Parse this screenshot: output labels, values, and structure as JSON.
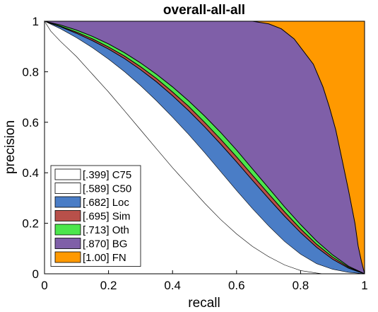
{
  "chart_data": {
    "type": "area",
    "title": "overall-all-all",
    "xlabel": "recall",
    "ylabel": "precision",
    "xlim": [
      0,
      1
    ],
    "ylim": [
      0,
      1
    ],
    "x_ticks": [
      "0",
      "0.2",
      "0.4",
      "0.6",
      "0.8",
      "1"
    ],
    "y_ticks": [
      "0",
      "0.2",
      "0.4",
      "0.6",
      "0.8",
      "1"
    ],
    "grid": false,
    "legend_position": "bottom-left",
    "series": [
      {
        "name": "[1.00] FN",
        "color": "#FF9900",
        "points": [
          [
            0,
            1
          ],
          [
            1,
            1
          ],
          [
            1,
            0
          ]
        ]
      },
      {
        "name": "[.870] BG",
        "color": "#7F5FA8",
        "points": [
          [
            0,
            1
          ],
          [
            0.1,
            1
          ],
          [
            0.2,
            1
          ],
          [
            0.3,
            1
          ],
          [
            0.4,
            1
          ],
          [
            0.5,
            1
          ],
          [
            0.6,
            1
          ],
          [
            0.65,
            1
          ],
          [
            0.7,
            0.99
          ],
          [
            0.74,
            0.97
          ],
          [
            0.78,
            0.93
          ],
          [
            0.81,
            0.88
          ],
          [
            0.84,
            0.83
          ],
          [
            0.87,
            0.74
          ],
          [
            0.89,
            0.66
          ],
          [
            0.91,
            0.57
          ],
          [
            0.93,
            0.45
          ],
          [
            0.95,
            0.33
          ],
          [
            0.97,
            0.2
          ],
          [
            0.98,
            0.11
          ],
          [
            0.99,
            0.05
          ],
          [
            1,
            0
          ]
        ]
      },
      {
        "name": "[.713] Oth",
        "color": "#4CE64C",
        "points": [
          [
            0,
            1
          ],
          [
            0.05,
            0.985
          ],
          [
            0.1,
            0.965
          ],
          [
            0.15,
            0.94
          ],
          [
            0.2,
            0.91
          ],
          [
            0.25,
            0.875
          ],
          [
            0.3,
            0.835
          ],
          [
            0.35,
            0.79
          ],
          [
            0.4,
            0.74
          ],
          [
            0.45,
            0.685
          ],
          [
            0.5,
            0.625
          ],
          [
            0.55,
            0.56
          ],
          [
            0.6,
            0.49
          ],
          [
            0.65,
            0.415
          ],
          [
            0.7,
            0.34
          ],
          [
            0.75,
            0.265
          ],
          [
            0.8,
            0.195
          ],
          [
            0.85,
            0.13
          ],
          [
            0.9,
            0.075
          ],
          [
            0.95,
            0.03
          ],
          [
            1,
            0
          ]
        ]
      },
      {
        "name": "[.695] Sim",
        "color": "#B8504A",
        "points": [
          [
            0,
            1
          ],
          [
            0.05,
            0.98
          ],
          [
            0.1,
            0.957
          ],
          [
            0.15,
            0.93
          ],
          [
            0.2,
            0.898
          ],
          [
            0.25,
            0.862
          ],
          [
            0.3,
            0.82
          ],
          [
            0.35,
            0.773
          ],
          [
            0.4,
            0.72
          ],
          [
            0.45,
            0.663
          ],
          [
            0.5,
            0.6
          ],
          [
            0.55,
            0.533
          ],
          [
            0.6,
            0.463
          ],
          [
            0.65,
            0.39
          ],
          [
            0.7,
            0.317
          ],
          [
            0.75,
            0.245
          ],
          [
            0.8,
            0.178
          ],
          [
            0.85,
            0.117
          ],
          [
            0.9,
            0.066
          ],
          [
            0.95,
            0.026
          ],
          [
            1,
            0
          ]
        ]
      },
      {
        "name": "[.682] Loc",
        "color": "#4A7DC6",
        "points": [
          [
            0,
            1
          ],
          [
            0.05,
            0.978
          ],
          [
            0.1,
            0.952
          ],
          [
            0.15,
            0.923
          ],
          [
            0.2,
            0.89
          ],
          [
            0.25,
            0.852
          ],
          [
            0.3,
            0.808
          ],
          [
            0.35,
            0.76
          ],
          [
            0.4,
            0.705
          ],
          [
            0.45,
            0.646
          ],
          [
            0.5,
            0.582
          ],
          [
            0.55,
            0.514
          ],
          [
            0.6,
            0.443
          ],
          [
            0.65,
            0.37
          ],
          [
            0.7,
            0.298
          ],
          [
            0.75,
            0.228
          ],
          [
            0.8,
            0.163
          ],
          [
            0.85,
            0.105
          ],
          [
            0.9,
            0.058
          ],
          [
            0.95,
            0.022
          ],
          [
            1,
            0
          ]
        ]
      },
      {
        "name": "[.589] C50",
        "color": "#FFFFFF",
        "points": [
          [
            0,
            1
          ],
          [
            0.05,
            0.97
          ],
          [
            0.1,
            0.935
          ],
          [
            0.15,
            0.895
          ],
          [
            0.2,
            0.85
          ],
          [
            0.25,
            0.8
          ],
          [
            0.3,
            0.745
          ],
          [
            0.35,
            0.685
          ],
          [
            0.4,
            0.62
          ],
          [
            0.45,
            0.552
          ],
          [
            0.5,
            0.48
          ],
          [
            0.55,
            0.405
          ],
          [
            0.6,
            0.33
          ],
          [
            0.65,
            0.258
          ],
          [
            0.7,
            0.19
          ],
          [
            0.75,
            0.128
          ],
          [
            0.8,
            0.078
          ],
          [
            0.85,
            0.04
          ],
          [
            0.9,
            0.018
          ],
          [
            0.95,
            0.006
          ],
          [
            1,
            0
          ]
        ]
      },
      {
        "name": "[.399] C75",
        "color": "#FFFFFF",
        "points": [
          [
            0,
            1
          ],
          [
            0.02,
            0.96
          ],
          [
            0.05,
            0.92
          ],
          [
            0.1,
            0.86
          ],
          [
            0.15,
            0.79
          ],
          [
            0.2,
            0.72
          ],
          [
            0.25,
            0.645
          ],
          [
            0.3,
            0.57
          ],
          [
            0.35,
            0.495
          ],
          [
            0.4,
            0.42
          ],
          [
            0.45,
            0.35
          ],
          [
            0.5,
            0.28
          ],
          [
            0.55,
            0.215
          ],
          [
            0.6,
            0.158
          ],
          [
            0.65,
            0.108
          ],
          [
            0.7,
            0.068
          ],
          [
            0.75,
            0.035
          ],
          [
            0.8,
            0.013
          ],
          [
            0.85,
            0.003
          ],
          [
            0.87,
            0
          ],
          [
            1,
            0
          ]
        ]
      }
    ],
    "legend": [
      {
        "label": "[.399] C75",
        "color": "#FFFFFF"
      },
      {
        "label": "[.589] C50",
        "color": "#FFFFFF"
      },
      {
        "label": "[.682] Loc",
        "color": "#4A7DC6"
      },
      {
        "label": "[.695] Sim",
        "color": "#B8504A"
      },
      {
        "label": "[.713] Oth",
        "color": "#4CE64C"
      },
      {
        "label": "[.870] BG",
        "color": "#7F5FA8"
      },
      {
        "label": "[1.00] FN",
        "color": "#FF9900"
      }
    ]
  }
}
